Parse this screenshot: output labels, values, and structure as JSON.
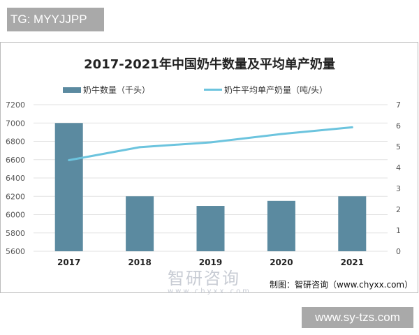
{
  "header_tag": "TG: MYYJJPP",
  "watermark": "www.sy-tzs.com",
  "logo": {
    "name": "智研咨询",
    "url": "www.chyxx.com"
  },
  "source": "制图：智研咨询（www.chyxx.com）",
  "colors": {
    "bar": "#5b8aa0",
    "line": "#6cc4de"
  },
  "chart_data": {
    "type": "bar+line",
    "title": "2017-2021年中国奶牛数量及平均单产奶量",
    "categories": [
      "2017",
      "2018",
      "2019",
      "2020",
      "2021"
    ],
    "series": [
      {
        "name": "奶牛数量（千头）",
        "type": "bar",
        "axis": "left",
        "values": [
          7000,
          6200,
          6095,
          6150,
          6200
        ]
      },
      {
        "name": "奶牛平均单产奶量（吨/头）",
        "type": "line",
        "axis": "right",
        "values": [
          4.35,
          4.97,
          5.2,
          5.6,
          5.92
        ]
      }
    ],
    "ylim_left": [
      5600,
      7200
    ],
    "yticks_left": [
      5600,
      5800,
      6000,
      6200,
      6400,
      6600,
      6800,
      7000,
      7200
    ],
    "ylim_right": [
      0,
      7
    ],
    "yticks_right": [
      0,
      1,
      2,
      3,
      4,
      5,
      6,
      7
    ],
    "grid": true,
    "legend": "top"
  }
}
